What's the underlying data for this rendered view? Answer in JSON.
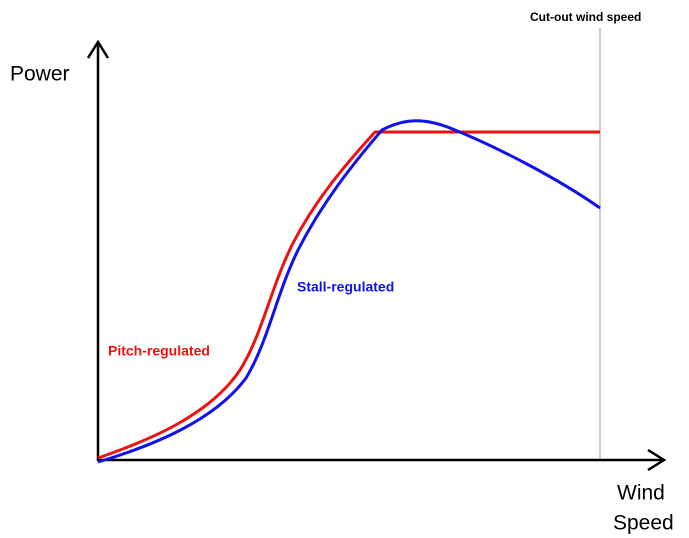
{
  "axes": {
    "y_label": "Power",
    "x_label_line1": "Wind",
    "x_label_line2": "Speed"
  },
  "markers": {
    "cut_out": "Cut-out wind speed"
  },
  "curves": {
    "pitch": "Pitch-regulated",
    "stall": "Stall-regulated"
  }
}
